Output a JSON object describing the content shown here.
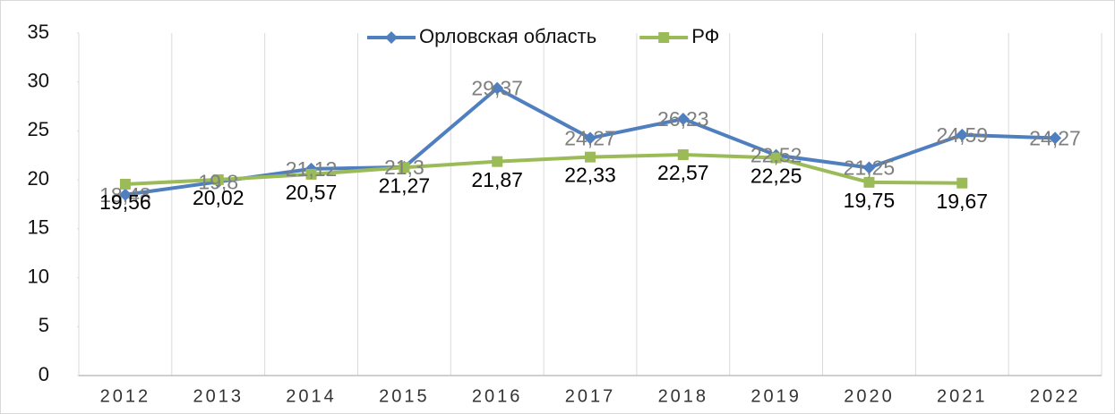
{
  "chart_data": {
    "type": "line",
    "categories": [
      "2012",
      "2013",
      "2014",
      "2015",
      "2016",
      "2017",
      "2018",
      "2019",
      "2020",
      "2021",
      "2022"
    ],
    "series": [
      {
        "name": "Орловская область",
        "color": "#4f7fbf",
        "marker": "diamond",
        "values": [
          18.48,
          19.8,
          21.12,
          21.3,
          29.37,
          24.27,
          26.23,
          22.52,
          21.25,
          24.59,
          24.27
        ],
        "value_labels": [
          "18,48",
          "19,8",
          "21,12",
          "21,3",
          "29,37",
          "24,27",
          "26,23",
          "22,52",
          "21,25",
          "24,59",
          "24,27"
        ]
      },
      {
        "name": "РФ",
        "color": "#9bbb59",
        "marker": "square",
        "values": [
          19.56,
          20.02,
          20.57,
          21.27,
          21.87,
          22.33,
          22.57,
          22.25,
          19.75,
          19.67,
          null
        ],
        "value_labels": [
          "19,56",
          "20,02",
          "20,57",
          "21,27",
          "21,87",
          "22,33",
          "22,57",
          "22,25",
          "19,75",
          "19,67",
          null
        ]
      }
    ],
    "ylim": [
      0,
      35
    ],
    "yticks": [
      0,
      5,
      10,
      15,
      20,
      25,
      30,
      35
    ],
    "legend": "top"
  }
}
